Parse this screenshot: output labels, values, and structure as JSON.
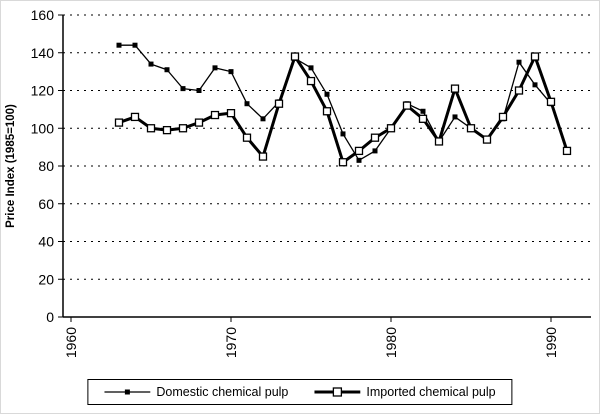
{
  "chart_data": {
    "type": "line",
    "title": "",
    "xlabel": "",
    "ylabel": "Price Index (1985=100)",
    "ylim": [
      0,
      160
    ],
    "yticks": [
      0,
      20,
      40,
      60,
      80,
      100,
      120,
      140,
      160
    ],
    "xlim": [
      1959.5,
      1992.5
    ],
    "xticks": [
      1960,
      1970,
      1980,
      1990
    ],
    "grid": "horizontal-dashed",
    "legend_position": "bottom",
    "line_color": "#000000",
    "background": "#ffffff",
    "x": [
      1963,
      1964,
      1965,
      1966,
      1967,
      1968,
      1969,
      1970,
      1971,
      1972,
      1973,
      1974,
      1975,
      1976,
      1977,
      1978,
      1979,
      1980,
      1981,
      1982,
      1983,
      1984,
      1985,
      1986,
      1987,
      1988,
      1989,
      1990,
      1991
    ],
    "series": [
      {
        "name": "Domestic chemical pulp",
        "marker": "filled-square",
        "line_width": "thin",
        "values": [
          144,
          144,
          134,
          131,
          121,
          120,
          132,
          130,
          113,
          105,
          114,
          137,
          132,
          118,
          97,
          83,
          88,
          100,
          113,
          109,
          93,
          106,
          100,
          94,
          105,
          135,
          123,
          113,
          88
        ]
      },
      {
        "name": "Imported chemical pulp",
        "marker": "open-square",
        "line_width": "thick",
        "values": [
          103,
          106,
          100,
          99,
          100,
          103,
          107,
          108,
          95,
          85,
          113,
          138,
          125,
          109,
          82,
          88,
          95,
          100,
          112,
          105,
          93,
          121,
          100,
          94,
          106,
          120,
          138,
          114,
          88
        ]
      }
    ]
  }
}
